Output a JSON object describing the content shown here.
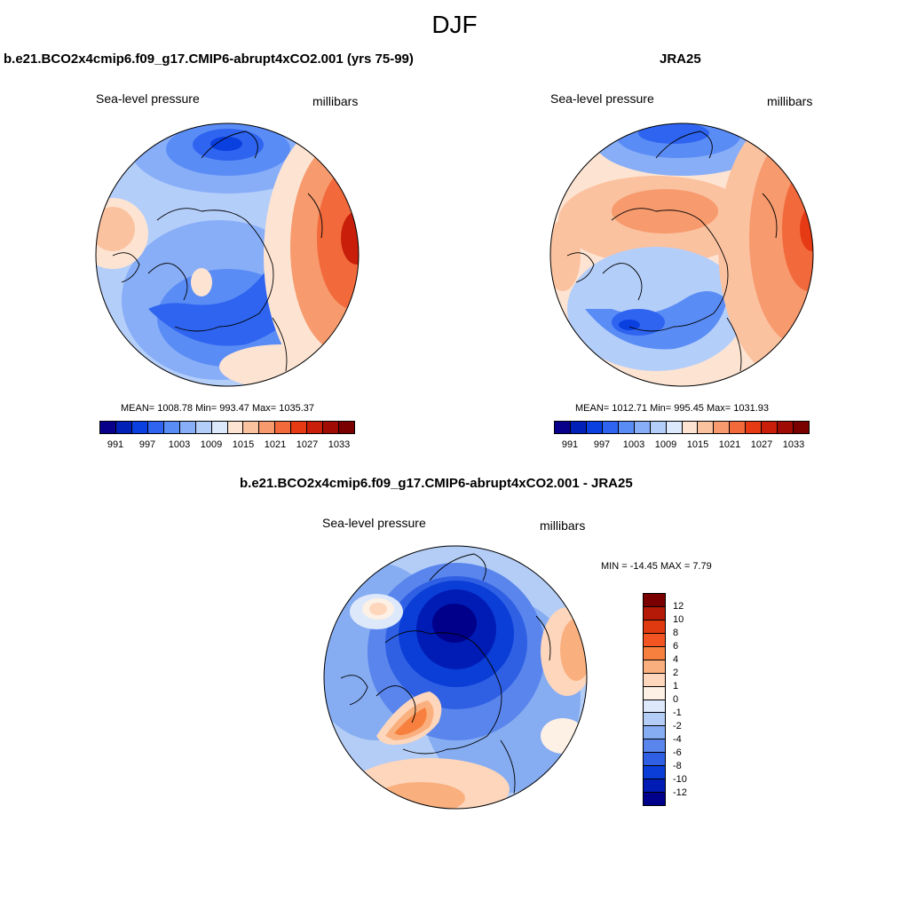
{
  "season_title": "DJF",
  "panels": [
    {
      "title": "b.e21.BCO2x4cmip6.f09_g17.CMIP6-abrupt4xCO2.001 (yrs 75-99)",
      "variable": "Sea-level pressure",
      "units": "millibars",
      "stats": "MEAN= 1008.78  Min= 993.47  Max= 1035.37"
    },
    {
      "title": "JRA25",
      "variable": "Sea-level pressure",
      "units": "millibars",
      "stats": "MEAN= 1012.71  Min= 995.45  Max= 1031.93"
    },
    {
      "title": "b.e21.BCO2x4cmip6.f09_g17.CMIP6-abrupt4xCO2.001 - JRA25",
      "variable": "Sea-level pressure",
      "units": "millibars",
      "stats": "MIN = -14.45 MAX =   7.79"
    }
  ],
  "colorbar_abs": {
    "colors": [
      "#08008a",
      "#0020b8",
      "#0a3fe0",
      "#2e64f0",
      "#5a8cf5",
      "#88aef8",
      "#b4cefa",
      "#dce9fc",
      "#fde4d2",
      "#fbc2a0",
      "#f79a6e",
      "#f26a3c",
      "#e63a14",
      "#c81e0a",
      "#a00c04",
      "#7a0000"
    ],
    "tick_labels": [
      "991",
      "997",
      "1003",
      "1009",
      "1015",
      "1021",
      "1027",
      "1033"
    ]
  },
  "colorbar_diff": {
    "colors": [
      "#7a0000",
      "#b51a08",
      "#e03a10",
      "#f25522",
      "#f7803e",
      "#fab07e",
      "#fdd6bc",
      "#fdf0e4",
      "#dde9fb",
      "#b3cdf7",
      "#86acf2",
      "#5985ec",
      "#2f60e4",
      "#0a3ed6",
      "#001cb5",
      "#00008a"
    ],
    "tick_labels": [
      "12",
      "10",
      "8",
      "6",
      "4",
      "2",
      "1",
      "0",
      "-1",
      "-2",
      "-4",
      "-6",
      "-8",
      "-10",
      "-12"
    ]
  }
}
